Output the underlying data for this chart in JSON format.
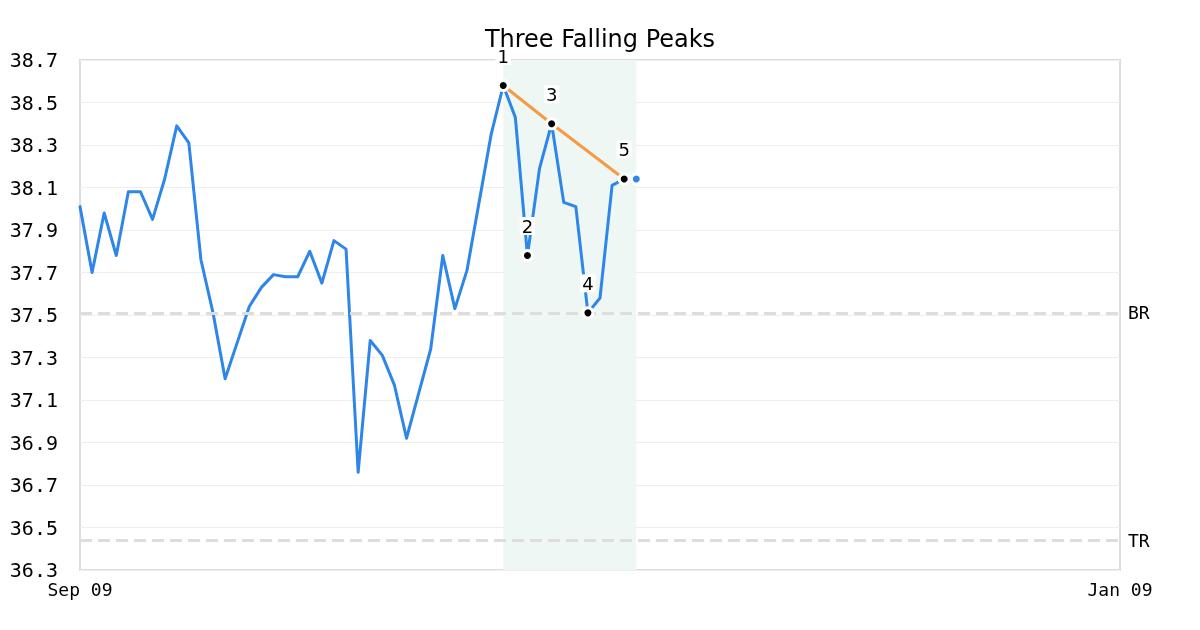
{
  "chart_data": {
    "type": "line",
    "title": "Three Falling Peaks",
    "categories": [
      "Sep 09",
      null,
      null,
      null,
      null,
      null,
      null,
      null,
      null,
      null,
      null,
      null,
      null,
      null,
      null,
      null,
      null,
      null,
      null,
      null,
      null,
      null,
      null,
      null,
      null,
      null,
      null,
      null,
      null,
      null,
      null,
      null,
      null,
      null,
      null,
      null,
      null,
      null,
      null,
      null,
      null,
      null,
      null,
      null,
      null,
      null,
      null,
      null,
      null,
      null,
      null,
      null,
      null,
      null,
      null,
      null,
      null,
      null,
      null,
      null,
      null,
      null,
      null,
      null,
      null,
      null,
      null,
      null,
      null,
      null,
      null,
      null,
      null,
      null,
      null,
      null,
      null,
      null,
      null,
      null,
      null,
      null,
      null,
      null,
      null,
      null,
      "Jan 09"
    ],
    "ylim": [
      36.3,
      38.7
    ],
    "yticks": [
      36.3,
      36.5,
      36.7,
      36.9,
      37.1,
      37.3,
      37.5,
      37.7,
      37.9,
      38.1,
      38.3,
      38.5,
      38.7
    ],
    "grid": "y",
    "marker": "none",
    "line_style": "solid",
    "series": [
      {
        "color": "#2e86e8",
        "values": [
          38.01,
          37.7,
          37.98,
          37.78,
          38.08,
          38.08,
          37.95,
          38.14,
          38.39,
          38.31,
          37.76,
          37.51,
          37.2,
          37.37,
          37.54,
          37.63,
          37.69,
          37.68,
          37.68,
          37.8,
          37.65,
          37.85,
          37.81,
          36.76,
          37.38,
          37.31,
          37.17,
          36.92,
          37.13,
          37.34,
          37.78,
          37.53,
          37.71,
          38.03,
          38.35,
          38.58,
          38.43,
          37.78,
          38.19,
          38.4,
          38.03,
          38.01,
          37.51,
          37.58,
          38.11,
          38.14,
          null,
          null,
          null,
          null,
          null,
          null,
          null,
          null,
          null,
          null,
          null,
          null,
          null,
          null,
          null,
          null,
          null,
          null,
          null,
          null,
          null,
          null,
          null,
          null,
          null,
          null,
          null,
          null,
          null,
          null,
          null,
          null,
          null,
          null,
          null,
          null,
          null,
          null,
          null,
          null,
          null
        ]
      },
      {
        "type": "line",
        "color": "#f59a45",
        "values": [
          null,
          null,
          null,
          null,
          null,
          null,
          null,
          null,
          null,
          null,
          null,
          null,
          null,
          null,
          null,
          null,
          null,
          null,
          null,
          null,
          null,
          null,
          null,
          null,
          null,
          null,
          null,
          null,
          null,
          null,
          null,
          null,
          null,
          null,
          null,
          38.58,
          null,
          null,
          null,
          38.4,
          null,
          null,
          null,
          null,
          null,
          38.14,
          null,
          null,
          null,
          null,
          null,
          null,
          null,
          null,
          null,
          null,
          null,
          null,
          null,
          null,
          null,
          null,
          null,
          null,
          null,
          null,
          null,
          null,
          null,
          null,
          null,
          null,
          null,
          null,
          null,
          null,
          null,
          null,
          null,
          null,
          null,
          null,
          null,
          null,
          null,
          null,
          null
        ]
      },
      {
        "type": "scatter",
        "color": "#000000",
        "marker": "circle",
        "values": [
          null,
          null,
          null,
          null,
          null,
          null,
          null,
          null,
          null,
          null,
          null,
          null,
          null,
          null,
          null,
          null,
          null,
          null,
          null,
          null,
          null,
          null,
          null,
          null,
          null,
          null,
          null,
          null,
          null,
          null,
          null,
          null,
          null,
          null,
          null,
          38.58,
          null,
          37.78,
          null,
          38.4,
          null,
          null,
          37.51,
          null,
          null,
          38.14,
          null,
          null,
          null,
          null,
          null,
          null,
          null,
          null,
          null,
          null,
          null,
          null,
          null,
          null,
          null,
          null,
          null,
          null,
          null,
          null,
          null,
          null,
          null,
          null,
          null,
          null,
          null,
          null,
          null,
          null,
          null,
          null,
          null,
          null,
          null,
          null,
          null,
          null,
          null,
          null,
          null
        ]
      },
      {
        "type": "scatter",
        "color": "#2e86e8",
        "marker": "circle",
        "values": [
          null,
          null,
          null,
          null,
          null,
          null,
          null,
          null,
          null,
          null,
          null,
          null,
          null,
          null,
          null,
          null,
          null,
          null,
          null,
          null,
          null,
          null,
          null,
          null,
          null,
          null,
          null,
          null,
          null,
          null,
          null,
          null,
          null,
          null,
          null,
          null,
          null,
          null,
          null,
          null,
          null,
          null,
          null,
          null,
          null,
          null,
          38.14,
          null,
          null,
          null,
          null,
          null,
          null,
          null,
          null,
          null,
          null,
          null,
          null,
          null,
          null,
          null,
          null,
          null,
          null,
          null,
          null,
          null,
          null,
          null,
          null,
          null,
          null,
          null,
          null,
          null,
          null,
          null,
          null,
          null,
          null,
          null,
          null,
          null,
          null,
          null,
          null
        ]
      }
    ],
    "ref_lines": [
      {
        "axis": "y",
        "value": 37.51,
        "label": "BR",
        "color": "#dddddd",
        "line_style": "dashed"
      },
      {
        "axis": "y",
        "value": 36.44,
        "label": "TR",
        "color": "#dddddd",
        "line_style": "dashed"
      }
    ],
    "annotations": [
      "1",
      "2",
      "3",
      "4",
      "5"
    ]
  }
}
